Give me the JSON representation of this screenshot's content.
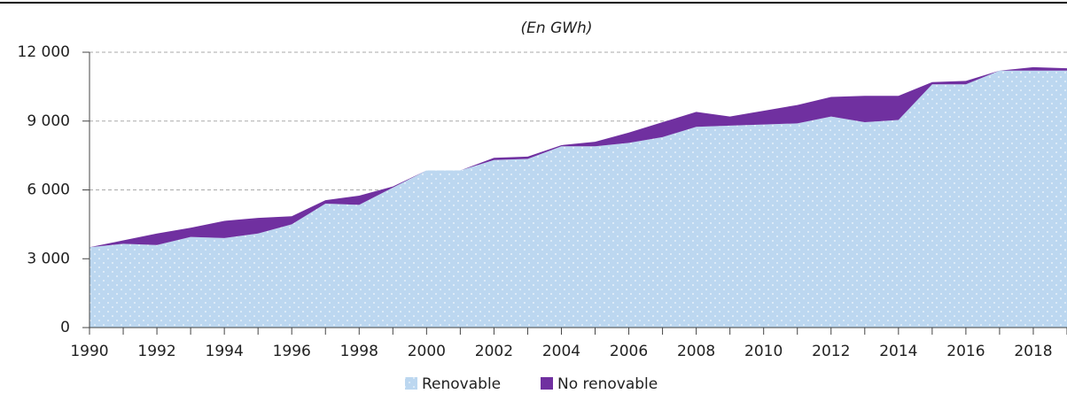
{
  "chart_data": {
    "type": "stacked_area",
    "subtitle": "(En GWh)",
    "x": [
      1990,
      1991,
      1992,
      1993,
      1994,
      1995,
      1996,
      1997,
      1998,
      1999,
      2000,
      2001,
      2002,
      2003,
      2004,
      2005,
      2006,
      2007,
      2008,
      2009,
      2010,
      2011,
      2012,
      2013,
      2014,
      2015,
      2016,
      2017,
      2018,
      2019
    ],
    "series": [
      {
        "name": "Renovable",
        "color": "#bcd7f0",
        "values": [
          3500,
          3650,
          3600,
          3950,
          3900,
          4100,
          4500,
          5400,
          5350,
          6100,
          6850,
          6850,
          7300,
          7350,
          7900,
          7900,
          8050,
          8300,
          8750,
          8800,
          8850,
          8900,
          9200,
          8950,
          9050,
          10600,
          10600,
          11200,
          11200,
          11200
        ]
      },
      {
        "name": "No renovable",
        "color": "#7030a0",
        "values": [
          0,
          150,
          500,
          400,
          750,
          680,
          350,
          150,
          400,
          50,
          0,
          0,
          100,
          100,
          50,
          200,
          450,
          650,
          650,
          400,
          600,
          800,
          850,
          1150,
          1050,
          100,
          150,
          0,
          150,
          100
        ]
      }
    ],
    "xlim": [
      1990,
      2019
    ],
    "xticks": [
      1990,
      1992,
      1994,
      1996,
      1998,
      2000,
      2002,
      2004,
      2006,
      2008,
      2010,
      2012,
      2014,
      2016,
      2018
    ],
    "ylim": [
      0,
      12000
    ],
    "yticks": [
      0,
      {
        "value": 3000,
        "label": "3 000"
      },
      {
        "value": 6000,
        "label": "6 000"
      },
      {
        "value": 9000,
        "label": "9 000"
      },
      {
        "value": 12000,
        "label": "12 000"
      }
    ],
    "grid": true
  }
}
